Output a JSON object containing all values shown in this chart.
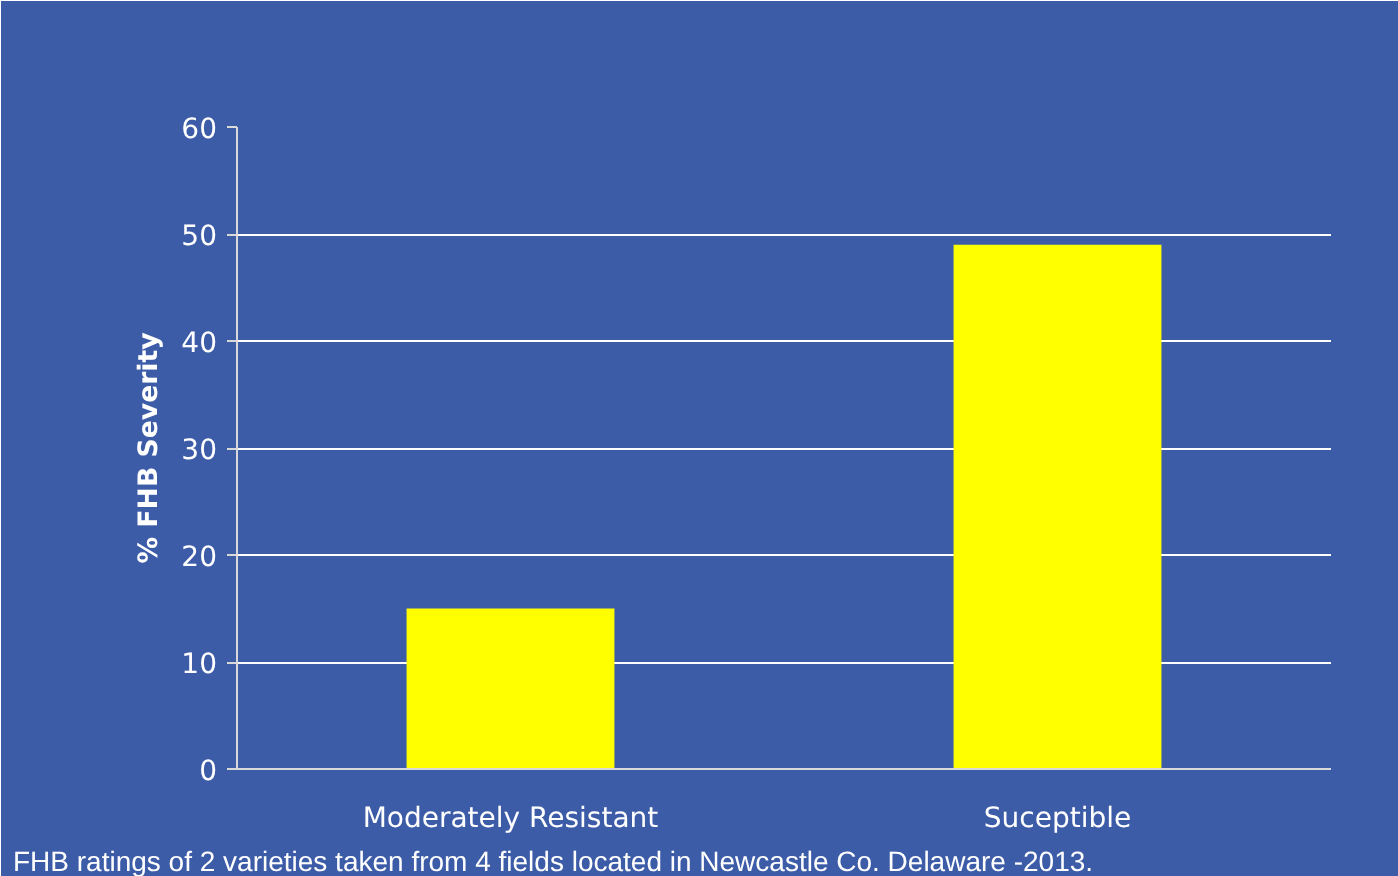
{
  "chart_data": {
    "type": "bar",
    "ylabel": "% FHB Severity",
    "categories": [
      "Moderately Resistant",
      "Suceptible"
    ],
    "values": [
      15,
      49
    ],
    "color": "#ffff00",
    "ylim": [
      0,
      60
    ],
    "yticks": [
      0,
      10,
      20,
      30,
      40,
      50,
      60
    ],
    "grid": "y",
    "annotations": [
      "FHB ratings of 2 varieties taken from 4  fields located in Newcastle Co. Delaware -2013."
    ]
  }
}
